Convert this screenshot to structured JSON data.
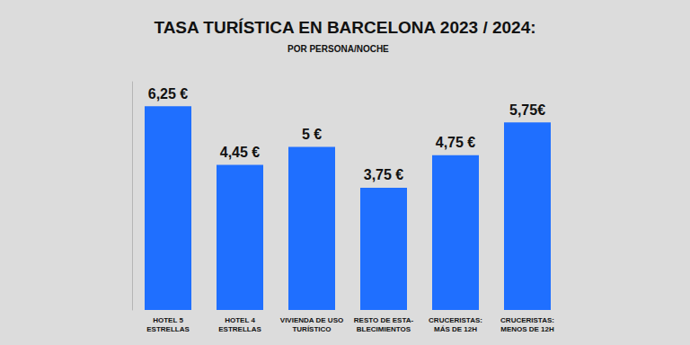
{
  "chart_data": {
    "type": "bar",
    "title": "TASA TURÍSTICA EN BARCELONA 2023 / 2024:",
    "subtitle": "POR PERSONA/NOCHE",
    "categories": [
      "HOTEL 5 ESTRELLAS",
      "HOTEL 4 ESTRELLAS",
      "VIVIENDA DE USO TURÍSTICO",
      "RESTO DE ESTA-BLECIMIENTOS",
      "CRUCERISTAS: MÁS DE 12H",
      "CRUCERISTAS: MENOS DE 12H"
    ],
    "values": [
      6.25,
      4.45,
      5,
      3.75,
      4.75,
      5.75
    ],
    "value_labels": [
      "6,25 €",
      "4,45 €",
      "5 €",
      "3,75 €",
      "4,75 €",
      "5,75€"
    ],
    "color": "#1f6fff",
    "ylim": [
      0,
      7
    ],
    "grid": false,
    "data_labels": true,
    "tick_labels": "x"
  }
}
